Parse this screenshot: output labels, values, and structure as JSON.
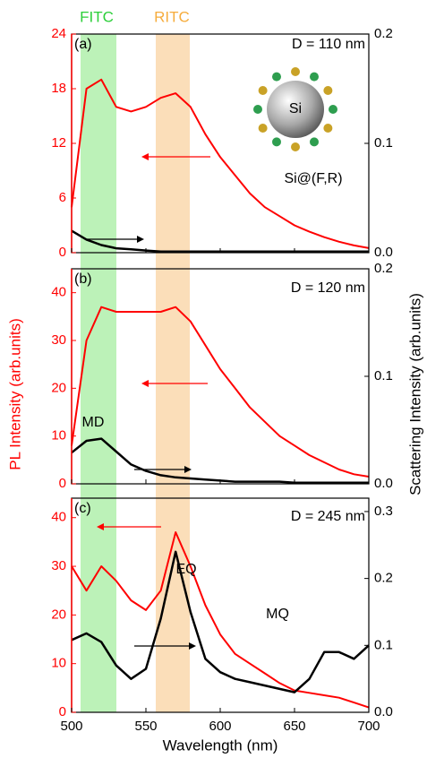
{
  "x_label": "Wavelength (nm)",
  "y_label": "PL Intensity (arb.units)",
  "y2_label": "Scattering Intensity (arb.units)",
  "band_labels": [
    "FITC",
    "RITC"
  ],
  "inset": {
    "core": "Si",
    "label": "Si@(F,R)"
  },
  "chart_data": [
    {
      "type": "line",
      "panel_label": "(a)",
      "annotations": [
        "D = 110 nm"
      ],
      "x": [
        500,
        510,
        520,
        530,
        540,
        550,
        560,
        570,
        580,
        590,
        600,
        610,
        620,
        630,
        640,
        650,
        660,
        670,
        680,
        690,
        700
      ],
      "xlim": [
        500,
        700
      ],
      "xticks": [
        500,
        550,
        600,
        650,
        700
      ],
      "ylim": [
        0,
        24
      ],
      "yticks": [
        0,
        6,
        12,
        18,
        24
      ],
      "y2lim": [
        0,
        0.2
      ],
      "y2ticks": [
        {
          "value": 0,
          "label": "0.0"
        },
        0.1,
        0.2
      ],
      "series": [
        {
          "color": "#ff0000",
          "values": [
            5,
            18,
            19,
            16,
            15.5,
            16,
            17,
            17.5,
            16,
            13,
            10.5,
            8.5,
            6.5,
            5,
            4,
            3,
            2.3,
            1.7,
            1.2,
            0.8,
            0.5
          ]
        },
        {
          "color": "#000000",
          "axis": "y2",
          "values": [
            0.02,
            0.012,
            0.007,
            0.004,
            0.003,
            0.002,
            0.001,
            0.001,
            0.001,
            0.001,
            0.001,
            0.001,
            0.001,
            0.001,
            0.001,
            0.001,
            0.001,
            0.001,
            0.001,
            0.001,
            0.001
          ]
        }
      ]
    },
    {
      "type": "line",
      "panel_label": "(b)",
      "annotations": [
        "D = 120 nm",
        "MD"
      ],
      "x": [
        500,
        510,
        520,
        530,
        540,
        550,
        560,
        570,
        580,
        590,
        600,
        610,
        620,
        630,
        640,
        650,
        660,
        670,
        680,
        690,
        700
      ],
      "xlim": [
        500,
        700
      ],
      "xticks": [
        500,
        550,
        600,
        650,
        700
      ],
      "ylim": [
        0,
        45
      ],
      "yticks": [
        0,
        10,
        20,
        30,
        40
      ],
      "y2lim": [
        0,
        0.2
      ],
      "y2ticks": [
        {
          "value": 0,
          "label": "0.0"
        },
        0.1,
        0.2
      ],
      "series": [
        {
          "color": "#ff0000",
          "values": [
            8,
            30,
            37,
            36,
            36,
            36,
            36,
            37,
            34,
            29,
            24,
            20,
            16,
            13,
            10,
            8,
            6,
            4.5,
            3,
            2,
            1.5
          ]
        },
        {
          "color": "#000000",
          "axis": "y2",
          "values": [
            0.029,
            0.04,
            0.042,
            0.03,
            0.018,
            0.012,
            0.008,
            0.006,
            0.005,
            0.004,
            0.003,
            0.002,
            0.002,
            0.002,
            0.002,
            0.001,
            0.001,
            0.001,
            0.001,
            0.001,
            0.001
          ]
        }
      ]
    },
    {
      "type": "line",
      "panel_label": "(c)",
      "annotations": [
        "D = 245 nm",
        "EQ",
        "MQ"
      ],
      "x": [
        500,
        510,
        520,
        530,
        540,
        550,
        560,
        570,
        580,
        590,
        600,
        610,
        620,
        630,
        640,
        650,
        660,
        670,
        680,
        690,
        700
      ],
      "xlim": [
        500,
        700
      ],
      "xticks": [
        500,
        550,
        600,
        650,
        700
      ],
      "ylim": [
        0,
        44
      ],
      "yticks": [
        0,
        10,
        20,
        30,
        40
      ],
      "y2lim": [
        0,
        0.32
      ],
      "y2ticks": [
        {
          "value": 0,
          "label": "0.0"
        },
        0.1,
        0.2,
        0.3
      ],
      "series": [
        {
          "color": "#ff0000",
          "values": [
            30,
            25,
            30,
            27,
            23,
            21,
            25,
            37,
            30,
            22,
            16,
            12,
            10,
            8,
            6,
            4.5,
            4,
            3.5,
            3,
            2,
            1
          ]
        },
        {
          "color": "#000000",
          "axis": "y2",
          "values": [
            0.108,
            0.118,
            0.105,
            0.07,
            0.05,
            0.065,
            0.14,
            0.24,
            0.15,
            0.08,
            0.06,
            0.05,
            0.045,
            0.04,
            0.035,
            0.03,
            0.05,
            0.09,
            0.09,
            0.08,
            0.1
          ]
        }
      ]
    }
  ]
}
